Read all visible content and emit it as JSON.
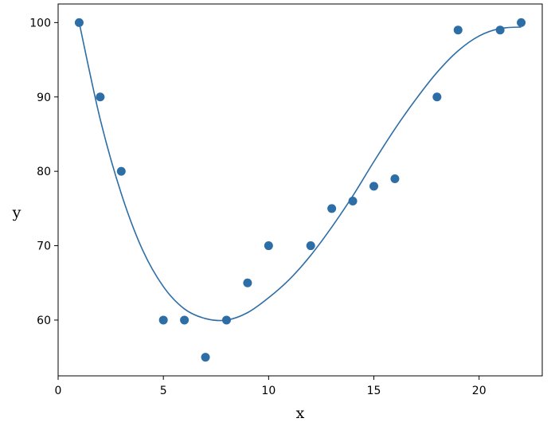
{
  "chart_data": {
    "type": "scatter",
    "title": "",
    "xlabel": "x",
    "ylabel": "y",
    "xlim": [
      0,
      23
    ],
    "ylim": [
      52.5,
      102.5
    ],
    "xticks": [
      0,
      5,
      10,
      15,
      20
    ],
    "yticks": [
      60,
      70,
      80,
      90,
      100
    ],
    "grid": false,
    "legend": "none",
    "series": [
      {
        "kind": "scatter",
        "color": "#2e6ea6",
        "points": [
          {
            "x": 1,
            "y": 100
          },
          {
            "x": 2,
            "y": 90
          },
          {
            "x": 3,
            "y": 80
          },
          {
            "x": 5,
            "y": 60
          },
          {
            "x": 6,
            "y": 60
          },
          {
            "x": 7,
            "y": 55
          },
          {
            "x": 8,
            "y": 60
          },
          {
            "x": 9,
            "y": 65
          },
          {
            "x": 10,
            "y": 70
          },
          {
            "x": 12,
            "y": 70
          },
          {
            "x": 13,
            "y": 75
          },
          {
            "x": 14,
            "y": 76
          },
          {
            "x": 15,
            "y": 78
          },
          {
            "x": 16,
            "y": 79
          },
          {
            "x": 18,
            "y": 90
          },
          {
            "x": 19,
            "y": 99
          },
          {
            "x": 21,
            "y": 99
          },
          {
            "x": 22,
            "y": 100
          }
        ]
      },
      {
        "kind": "line",
        "color": "#2e6ea6",
        "points": [
          {
            "x": 1,
            "y": 100
          },
          {
            "x": 2,
            "y": 87
          },
          {
            "x": 3,
            "y": 77
          },
          {
            "x": 4,
            "y": 69.5
          },
          {
            "x": 5,
            "y": 64.5
          },
          {
            "x": 6,
            "y": 61.5
          },
          {
            "x": 7,
            "y": 60.2
          },
          {
            "x": 8,
            "y": 60
          },
          {
            "x": 9,
            "y": 61
          },
          {
            "x": 10,
            "y": 63
          },
          {
            "x": 11,
            "y": 65.5
          },
          {
            "x": 12,
            "y": 68.7
          },
          {
            "x": 13,
            "y": 72.5
          },
          {
            "x": 14,
            "y": 76.7
          },
          {
            "x": 15,
            "y": 81.3
          },
          {
            "x": 16,
            "y": 85.7
          },
          {
            "x": 17,
            "y": 89.7
          },
          {
            "x": 18,
            "y": 93.3
          },
          {
            "x": 19,
            "y": 96.2
          },
          {
            "x": 20,
            "y": 98.2
          },
          {
            "x": 21,
            "y": 99.2
          },
          {
            "x": 22,
            "y": 99.4
          }
        ]
      }
    ]
  }
}
